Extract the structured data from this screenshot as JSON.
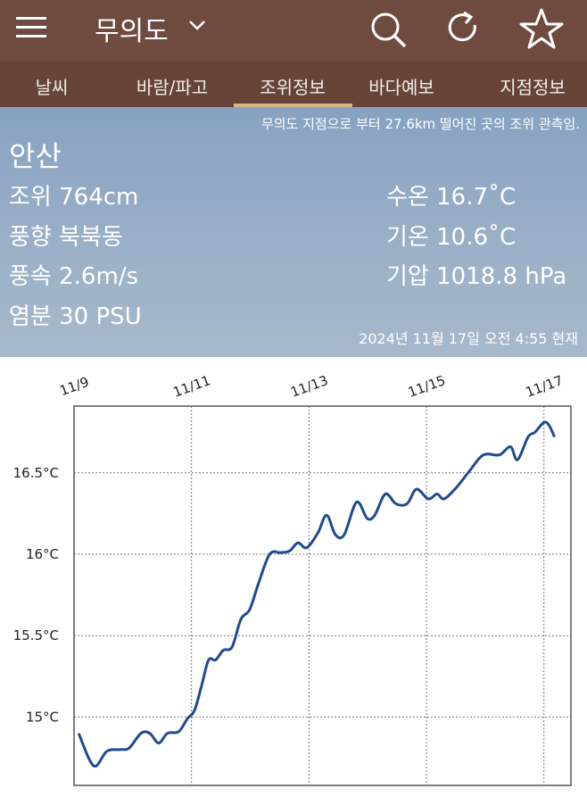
{
  "header": {
    "title": "무의도"
  },
  "tabs": [
    "날씨",
    "바람/파고",
    "조위정보",
    "바다예보",
    "지점정보"
  ],
  "selected_tab_index": 2,
  "info": {
    "note": "무의도 지점으로 부터 27.6km 떨어진 곳의 조위 관측임.",
    "station": "안산",
    "left": [
      "조위 764cm",
      "풍향 북북동",
      "풍속 2.6m/s",
      "염분 30 PSU"
    ],
    "right": [
      "수온 16.7˚C",
      "기온 10.6˚C",
      "기압 1018.8 hPa"
    ],
    "timestamp": "2024년 11월 17일 오전 4:55 현재"
  },
  "chart_data": {
    "type": "line",
    "x": [
      9.08,
      9.26,
      9.38,
      9.56,
      9.79,
      9.94,
      10.14,
      10.29,
      10.44,
      10.59,
      10.78,
      10.93,
      11.05,
      11.17,
      11.29,
      11.41,
      11.54,
      11.69,
      11.84,
      11.99,
      12.14,
      12.33,
      12.52,
      12.67,
      12.81,
      12.96,
      13.15,
      13.3,
      13.45,
      13.6,
      13.81,
      13.99,
      14.12,
      14.3,
      14.48,
      14.67,
      14.83,
      15.03,
      15.18,
      15.3,
      15.51,
      15.73,
      15.97,
      16.24,
      16.43,
      16.55,
      16.73,
      16.85,
      17.0,
      17.09,
      17.18
    ],
    "values": [
      14.9,
      14.74,
      14.7,
      14.79,
      14.8,
      14.81,
      14.9,
      14.9,
      14.84,
      14.9,
      14.91,
      14.99,
      15.04,
      15.19,
      15.35,
      15.35,
      15.41,
      15.43,
      15.6,
      15.66,
      15.82,
      16.0,
      16.01,
      16.02,
      16.07,
      16.04,
      16.13,
      16.24,
      16.12,
      16.12,
      16.32,
      16.22,
      16.24,
      16.37,
      16.31,
      16.31,
      16.4,
      16.34,
      16.37,
      16.34,
      16.41,
      16.51,
      16.61,
      16.61,
      16.66,
      16.58,
      16.72,
      16.75,
      16.81,
      16.79,
      16.72
    ],
    "color": "#1f4b8f",
    "xlim": [
      9,
      17.46
    ],
    "ylim": [
      14.58,
      16.91
    ],
    "xticks": [
      {
        "value": 9,
        "label": "11/9"
      },
      {
        "value": 11,
        "label": "11/11"
      },
      {
        "value": 13,
        "label": "11/13"
      },
      {
        "value": 15,
        "label": "11/15"
      },
      {
        "value": 17,
        "label": "11/17"
      }
    ],
    "yticks": [
      {
        "value": 15,
        "label": "15°C"
      },
      {
        "value": 15.5,
        "label": "15.5°C"
      },
      {
        "value": 16,
        "label": "16°C"
      },
      {
        "value": 16.5,
        "label": "16.5°C"
      }
    ],
    "grid": true
  }
}
